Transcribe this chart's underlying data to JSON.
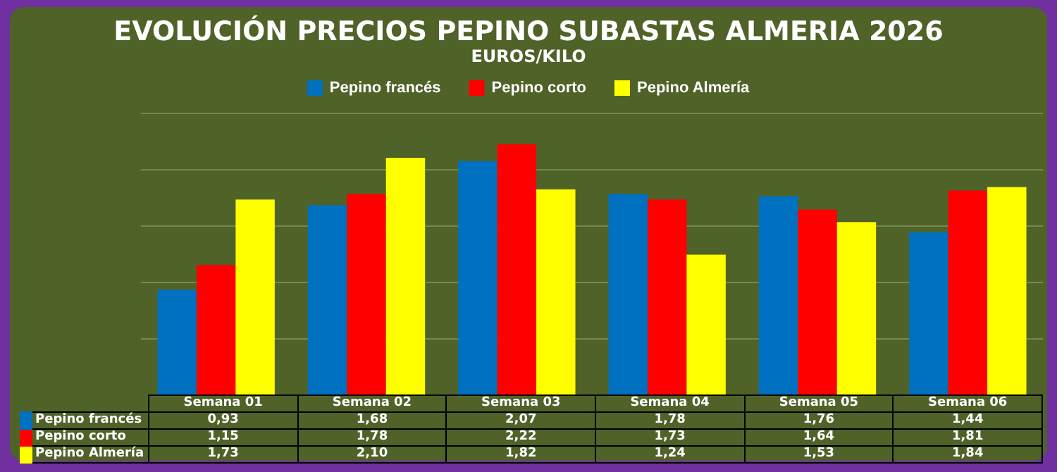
{
  "chart_data": {
    "type": "bar",
    "title": "EVOLUCIÓN PRECIOS PEPINO SUBASTAS ALMERIA 2026",
    "subtitle": "EUROS/KILO",
    "categories": [
      "Semana 01",
      "Semana 02",
      "Semana 03",
      "Semana 04",
      "Semana 05",
      "Semana 06"
    ],
    "series": [
      {
        "name": "Pepino francés",
        "color": "#0070c0",
        "values": [
          0.93,
          1.68,
          2.07,
          1.78,
          1.76,
          1.44
        ],
        "value_labels": [
          "0,93",
          "1,68",
          "2,07",
          "1,78",
          "1,76",
          "1,44"
        ]
      },
      {
        "name": "Pepino corto",
        "color": "#ff0000",
        "values": [
          1.15,
          1.78,
          2.22,
          1.73,
          1.64,
          1.81
        ],
        "value_labels": [
          "1,15",
          "1,78",
          "2,22",
          "1,73",
          "1,64",
          "1,81"
        ]
      },
      {
        "name": "Pepino Almería",
        "color": "#ffff00",
        "values": [
          1.73,
          2.1,
          1.82,
          1.24,
          1.53,
          1.84
        ],
        "value_labels": [
          "1,73",
          "2,10",
          "1,82",
          "1,24",
          "1,53",
          "1,84"
        ]
      }
    ],
    "ylim": [
      0,
      2.5
    ],
    "yticks": [
      {
        "value": 0.5,
        "label": null
      },
      {
        "value": 1,
        "label": null
      },
      {
        "value": 1.5,
        "label": null
      },
      {
        "value": 2,
        "label": null
      },
      {
        "value": 2.5,
        "label": null
      }
    ],
    "tick_labels": "x",
    "grid": "y",
    "legend": "top"
  }
}
